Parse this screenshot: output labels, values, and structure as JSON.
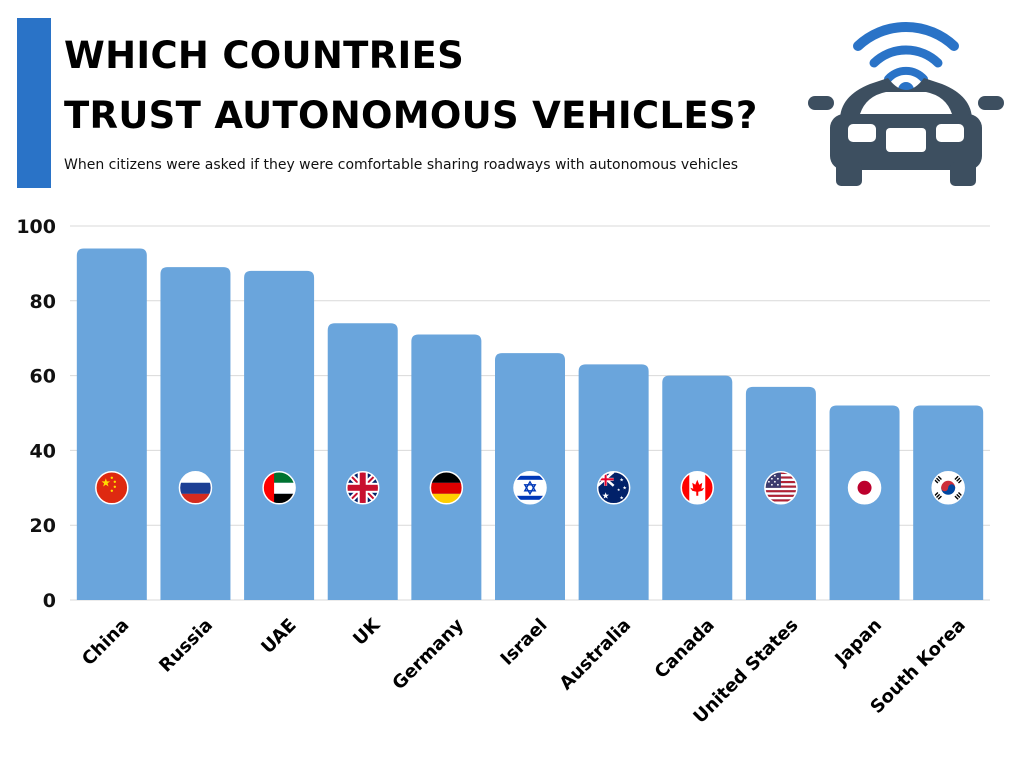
{
  "header": {
    "title_line1": "WHICH COUNTRIES",
    "title_line2": "TRUST AUTONOMOUS VEHICLES?",
    "subtitle": "When citizens were asked if they were comfortable sharing roadways with autonomous vehicles"
  },
  "icons": {
    "header": "autonomous-car-icon"
  },
  "colors": {
    "accent": "#2a73c7",
    "bar": "#6aa5dc",
    "grid": "#d9d9d9",
    "car": "#3d4f60",
    "wifi": "#2a73c7"
  },
  "chart_data": {
    "type": "bar",
    "title": "WHICH COUNTRIES TRUST AUTONOMOUS VEHICLES?",
    "subtitle": "When citizens were asked if they were comfortable sharing roadways with autonomous vehicles",
    "categories": [
      "China",
      "Russia",
      "UAE",
      "UK",
      "Germany",
      "Israel",
      "Australia",
      "Canada",
      "United States",
      "Japan",
      "South Korea"
    ],
    "values": [
      94,
      89,
      88,
      74,
      71,
      66,
      63,
      60,
      57,
      52,
      52
    ],
    "flag_icons": [
      "china-flag-icon",
      "russia-flag-icon",
      "uae-flag-icon",
      "uk-flag-icon",
      "germany-flag-icon",
      "israel-flag-icon",
      "australia-flag-icon",
      "canada-flag-icon",
      "united-states-flag-icon",
      "japan-flag-icon",
      "south-korea-flag-icon"
    ],
    "xlabel": "",
    "ylabel": "",
    "ylim": [
      0,
      100
    ],
    "yticks": [
      0,
      20,
      40,
      60,
      80,
      100
    ],
    "grid": true,
    "legend": false
  }
}
